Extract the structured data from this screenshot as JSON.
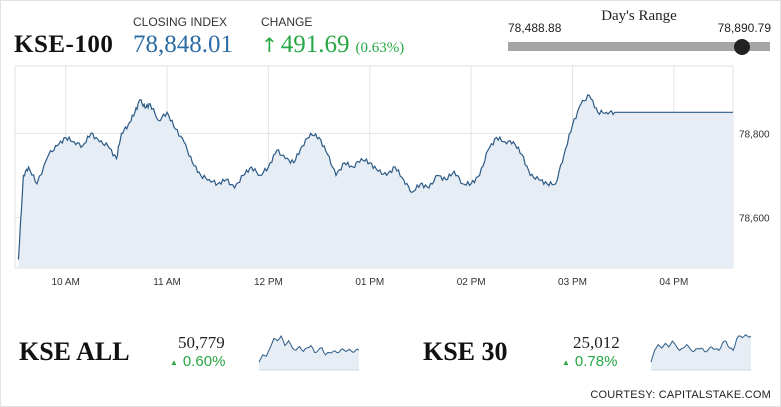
{
  "header": {
    "index_name": "KSE-100",
    "closing_caption": "CLOSING INDEX",
    "closing_value": "78,848.01",
    "change_caption": "CHANGE",
    "change_arrow": "↑",
    "change_value": "491.69",
    "change_percent": "(0.63%)"
  },
  "day_range": {
    "title": "Day's Range",
    "low_label": "78,488.88",
    "high_label": "78,890.79",
    "low": 78488.88,
    "high": 78890.79,
    "current": 78848.01
  },
  "colors": {
    "up": "#27a844",
    "closing": "#2e6da4",
    "line": "#2d5b87",
    "fill": "#e6edf4"
  },
  "chart_data": [
    {
      "type": "area",
      "title": "KSE-100",
      "x_ticks": [
        "10 AM",
        "11 AM",
        "12 PM",
        "01 PM",
        "02 PM",
        "03 PM",
        "04 PM"
      ],
      "y_ticks": [
        "78,800",
        "78,600"
      ],
      "y_tick_values": [
        78800,
        78600
      ],
      "grid": true,
      "ylim": [
        78480,
        78960
      ],
      "series": [
        {
          "x": [
            "09:32",
            "09:35",
            "09:38",
            "09:43",
            "09:50",
            "09:55",
            "10:00",
            "10:05",
            "10:10",
            "10:15",
            "10:20",
            "10:25",
            "10:30",
            "10:33",
            "10:37",
            "10:41",
            "10:44",
            "10:47",
            "10:50",
            "10:55",
            "11:00",
            "11:05",
            "11:10",
            "11:15",
            "11:20",
            "11:25",
            "11:30",
            "11:35",
            "11:40",
            "11:45",
            "11:50",
            "11:55",
            "12:00",
            "12:05",
            "12:10",
            "12:15",
            "12:20",
            "12:25",
            "12:30",
            "12:35",
            "12:40",
            "12:45",
            "12:50",
            "12:55",
            "13:00",
            "13:05",
            "13:10",
            "13:15",
            "13:20",
            "13:25",
            "13:30",
            "13:35",
            "13:40",
            "13:45",
            "13:50",
            "13:55",
            "14:00",
            "14:05",
            "14:10",
            "14:15",
            "14:20",
            "14:25",
            "14:30",
            "14:35",
            "14:40",
            "14:45",
            "14:50",
            "14:55",
            "15:00",
            "15:05",
            "15:10",
            "15:15",
            "15:20",
            "15:25",
            "15:30",
            "15:35",
            "15:40",
            "15:45",
            "15:50",
            "15:55",
            "16:00",
            "16:05",
            "16:10",
            "16:15",
            "16:20",
            "16:25",
            "16:30",
            "16:35"
          ],
          "values": [
            78500,
            78700,
            78720,
            78680,
            78750,
            78770,
            78790,
            78780,
            78770,
            78800,
            78780,
            78770,
            78740,
            78800,
            78820,
            78850,
            78880,
            78860,
            78870,
            78830,
            78850,
            78810,
            78780,
            78730,
            78700,
            78690,
            78680,
            78690,
            78670,
            78700,
            78720,
            78700,
            78720,
            78760,
            78740,
            78730,
            78770,
            78800,
            78790,
            78750,
            78700,
            78730,
            78720,
            78740,
            78730,
            78710,
            78700,
            78720,
            78690,
            78660,
            78680,
            78670,
            78700,
            78690,
            78710,
            78680,
            78680,
            78700,
            78760,
            78790,
            78780,
            78780,
            78750,
            78700,
            78690,
            78680,
            78680,
            78750,
            78820,
            78870,
            78890,
            78850,
            78850,
            78850,
            78850,
            78850,
            78850,
            78850,
            78850,
            78850,
            78850,
            78850,
            78850,
            78850,
            78850,
            78850,
            78850,
            78850
          ]
        }
      ]
    },
    {
      "type": "area",
      "title": "KSE ALL",
      "series": [
        {
          "values": [
            50700,
            50730,
            50725,
            50760,
            50800,
            50790,
            50810,
            50770,
            50790,
            50760,
            50750,
            50765,
            50745,
            50760,
            50770,
            50740,
            50750,
            50760,
            50730,
            50740,
            50745,
            50740,
            50750,
            50750,
            50750,
            50745,
            50748,
            50750
          ]
        }
      ]
    },
    {
      "type": "area",
      "title": "KSE 30",
      "series": [
        {
          "values": [
            24900,
            24950,
            24975,
            24960,
            24980,
            24965,
            24990,
            24970,
            24950,
            24960,
            24975,
            24955,
            24945,
            24958,
            24960,
            24945,
            24952,
            24965,
            24955,
            24950,
            24980,
            24990,
            24960,
            24950,
            25000,
            25012,
            25010,
            25012,
            25012
          ]
        }
      ]
    }
  ],
  "kse_all": {
    "name": "KSE ALL",
    "value": "50,779",
    "triangle": "▲",
    "change": "0.60%"
  },
  "kse_30": {
    "name": "KSE 30",
    "value": "25,012",
    "triangle": "▲",
    "change": "0.78%"
  },
  "footer": {
    "courtesy": "COURTESY: CAPITALSTAKE.COM"
  }
}
